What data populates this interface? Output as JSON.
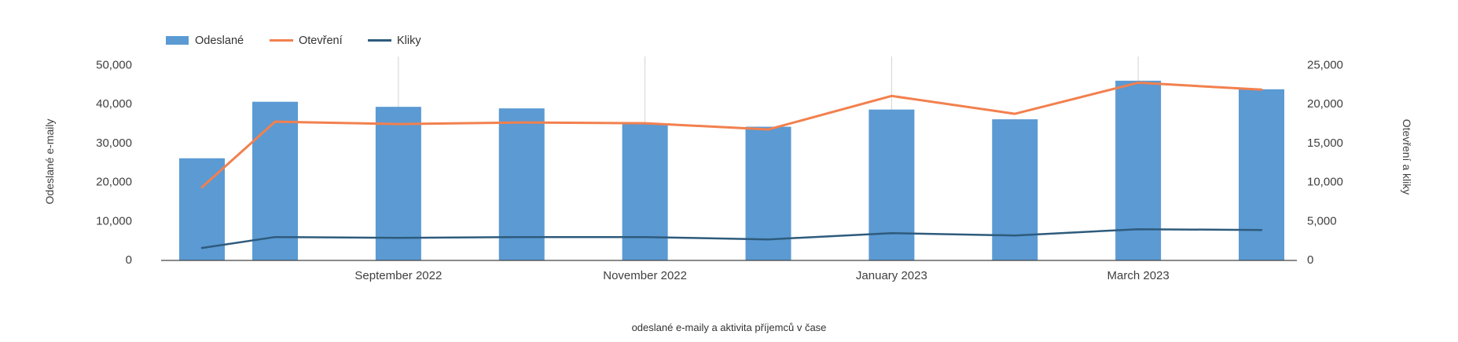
{
  "caption": "odeslané e-maily a aktivita příjemců v čase",
  "legend": {
    "items": [
      {
        "label": "Odeslané",
        "marker": "bar-swatch",
        "color": "#5b9ad3"
      },
      {
        "label": "Otevření",
        "marker": "line-swatch",
        "color": "#f2804e"
      },
      {
        "label": "Kliky",
        "marker": "line-swatch",
        "color": "#2e5b7c"
      }
    ]
  },
  "left_axis": {
    "title": "Odeslané e-maily",
    "tick_labels": [
      "0",
      "10,000",
      "20,000",
      "30,000",
      "40,000",
      "50,000"
    ],
    "max": 50000
  },
  "right_axis": {
    "title": "Otevření a kliky",
    "tick_labels": [
      "0",
      "5,000",
      "10,000",
      "15,000",
      "20,000",
      "25,000"
    ],
    "max": 25000
  },
  "colors": {
    "bar": "#5b9ad3",
    "open_line": "#f2804e",
    "click_line": "#2e5b7c",
    "gridline": "#d3d3d3",
    "axis_line": "#444444",
    "tick_text": "#404040"
  },
  "chart_data": {
    "type": "bar+line combo",
    "x_tick_labels": [
      "September 2022",
      "November 2022",
      "January 2023",
      "March 2023"
    ],
    "x_tick_bar_indices": [
      2,
      4,
      6,
      8
    ],
    "bar_count": 10,
    "left_axis_range": [
      0,
      50000
    ],
    "right_axis_range": [
      0,
      25000
    ],
    "grid": "vertical-ticks-only",
    "legend_position": "top-left",
    "series": [
      {
        "name": "Odeslané",
        "type": "bar",
        "axis": "left",
        "values": [
          26200,
          40700,
          39400,
          39000,
          35100,
          34300,
          38700,
          36200,
          46100,
          43900
        ]
      },
      {
        "name": "Otevření",
        "type": "line",
        "axis": "right",
        "values": [
          9400,
          17800,
          17500,
          17700,
          17600,
          16800,
          21100,
          18800,
          22800,
          21900
        ]
      },
      {
        "name": "Kliky",
        "type": "line",
        "axis": "right",
        "values": [
          1600,
          3000,
          2900,
          3000,
          3000,
          2700,
          3500,
          3200,
          4000,
          3900
        ]
      }
    ]
  }
}
